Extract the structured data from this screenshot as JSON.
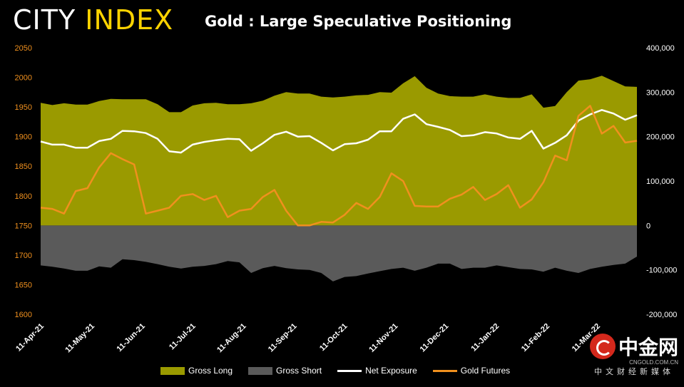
{
  "header": {
    "logo_part1": "CITY ",
    "logo_part2": "INDEX",
    "title": "Gold : Large Speculative Positioning"
  },
  "colors": {
    "gross_long": "#9a9a00",
    "gross_short": "#5a5a5a",
    "net_exposure": "#ffffff",
    "gold_futures": "#f0901e",
    "left_axis_text": "#f0901e",
    "right_axis_text": "#ffffff"
  },
  "watermark": {
    "brand": "中金网",
    "site": "CNGOLD.COM.CN",
    "tagline": "中文财经新媒体"
  },
  "chart_data": {
    "type": "area",
    "title": "Gold : Large Speculative Positioning",
    "x_tick_labels": [
      "11-Apr-21",
      "11-May-21",
      "11-Jun-21",
      "11-Jul-21",
      "11-Aug-21",
      "11-Sep-21",
      "11-Oct-21",
      "11-Nov-21",
      "11-Dec-21",
      "11-Jan-22",
      "11-Feb-22",
      "11-Mar-22"
    ],
    "y_left": {
      "ticks": [
        1600,
        1650,
        1700,
        1750,
        1800,
        1850,
        1900,
        1950,
        2000,
        2050
      ],
      "range": [
        1600,
        2050
      ]
    },
    "y_right": {
      "ticks": [
        "-200,000",
        "-100,000",
        "0",
        "100,000",
        "200,000",
        "300,000",
        "400,000"
      ],
      "range": [
        -200000,
        400000
      ]
    },
    "legend_position": "bottom",
    "series": [
      {
        "name": "Gross Long",
        "type": "area",
        "axis": "right",
        "values": [
          276000,
          271000,
          275000,
          272000,
          272000,
          280000,
          285000,
          284000,
          284000,
          284000,
          273000,
          255000,
          255000,
          270000,
          275000,
          276000,
          273000,
          273000,
          275000,
          281000,
          292000,
          300000,
          297000,
          297000,
          290000,
          288000,
          290000,
          293000,
          294000,
          300000,
          299000,
          320000,
          336000,
          310000,
          297000,
          291000,
          290000,
          290000,
          295000,
          290000,
          287000,
          287000,
          295000,
          265000,
          269000,
          300000,
          326000,
          329000,
          337000,
          325000,
          313000,
          312000
        ]
      },
      {
        "name": "Gross Short",
        "type": "area",
        "axis": "right",
        "values": [
          -90000,
          -93000,
          -97000,
          -102000,
          -102000,
          -92000,
          -95000,
          -76000,
          -78000,
          -82000,
          -87000,
          -93000,
          -97000,
          -93000,
          -91000,
          -87000,
          -80000,
          -83000,
          -107000,
          -96000,
          -91000,
          -96000,
          -99000,
          -100000,
          -107000,
          -126000,
          -116000,
          -114000,
          -108000,
          -103000,
          -98000,
          -95000,
          -102000,
          -95000,
          -86000,
          -86000,
          -98000,
          -95000,
          -95000,
          -90000,
          -94000,
          -98000,
          -99000,
          -104000,
          -95000,
          -102000,
          -107000,
          -98000,
          -93000,
          -89000,
          -86000,
          -70000
        ]
      },
      {
        "name": "Net Exposure",
        "type": "line",
        "axis": "right",
        "values": [
          189000,
          182000,
          182000,
          175000,
          175000,
          190000,
          195000,
          213000,
          212000,
          208000,
          195000,
          167000,
          164000,
          182000,
          188000,
          192000,
          195000,
          194000,
          168000,
          185000,
          204000,
          211000,
          200000,
          201000,
          186000,
          169000,
          183000,
          185000,
          193000,
          212000,
          212000,
          240000,
          250000,
          228000,
          222000,
          215000,
          201000,
          203000,
          210000,
          207000,
          198000,
          195000,
          213000,
          173000,
          186000,
          203000,
          236000,
          250000,
          260000,
          252000,
          238000,
          248000
        ]
      },
      {
        "name": "Gold Futures",
        "type": "line",
        "axis": "left",
        "values": [
          1780,
          1778,
          1770,
          1808,
          1813,
          1848,
          1872,
          1862,
          1853,
          1770,
          1775,
          1780,
          1800,
          1803,
          1793,
          1800,
          1764,
          1775,
          1778,
          1798,
          1810,
          1775,
          1750,
          1750,
          1756,
          1755,
          1768,
          1788,
          1778,
          1798,
          1838,
          1825,
          1783,
          1782,
          1782,
          1795,
          1802,
          1815,
          1793,
          1803,
          1818,
          1780,
          1794,
          1823,
          1868,
          1860,
          1935,
          1952,
          1905,
          1918,
          1890,
          1893
        ]
      }
    ]
  }
}
